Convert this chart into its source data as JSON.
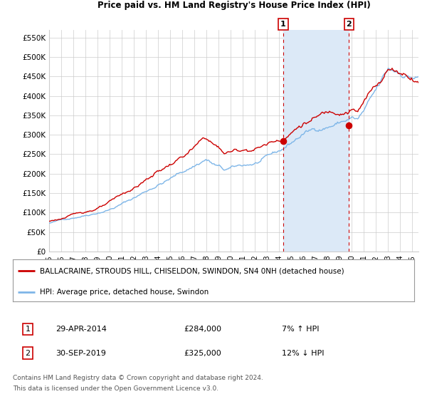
{
  "title": "BALLACRAINE, STROUDS HILL, CHISELDON, SWINDON, SN4 0NH",
  "subtitle": "Price paid vs. HM Land Registry's House Price Index (HPI)",
  "red_label": "BALLACRAINE, STROUDS HILL, CHISELDON, SWINDON, SN4 0NH (detached house)",
  "blue_label": "HPI: Average price, detached house, Swindon",
  "annotation1_date": "29-APR-2014",
  "annotation1_price": "£284,000",
  "annotation1_hpi": "7% ↑ HPI",
  "annotation2_date": "30-SEP-2019",
  "annotation2_price": "£325,000",
  "annotation2_hpi": "12% ↓ HPI",
  "footnote1": "Contains HM Land Registry data © Crown copyright and database right 2024.",
  "footnote2": "This data is licensed under the Open Government Licence v3.0.",
  "xmin": 1995.0,
  "xmax": 2025.5,
  "ymin": 0,
  "ymax": 570000,
  "yticks": [
    0,
    50000,
    100000,
    150000,
    200000,
    250000,
    300000,
    350000,
    400000,
    450000,
    500000,
    550000
  ],
  "ytick_labels": [
    "£0",
    "£50K",
    "£100K",
    "£150K",
    "£200K",
    "£250K",
    "£300K",
    "£350K",
    "£400K",
    "£450K",
    "£500K",
    "£550K"
  ],
  "xticks": [
    1995,
    1996,
    1997,
    1998,
    1999,
    2000,
    2001,
    2002,
    2003,
    2004,
    2005,
    2006,
    2007,
    2008,
    2009,
    2010,
    2011,
    2012,
    2013,
    2014,
    2015,
    2016,
    2017,
    2018,
    2019,
    2020,
    2021,
    2022,
    2023,
    2024,
    2025
  ],
  "purchase1_x": 2014.33,
  "purchase1_y": 284000,
  "purchase2_x": 2019.75,
  "purchase2_y": 325000,
  "shade_color": "#dce9f7",
  "red_color": "#cc0000",
  "blue_color": "#7eb6e8",
  "grid_color": "#cccccc",
  "bg_color": "#ffffff",
  "anno_box_color": "#cc0000"
}
